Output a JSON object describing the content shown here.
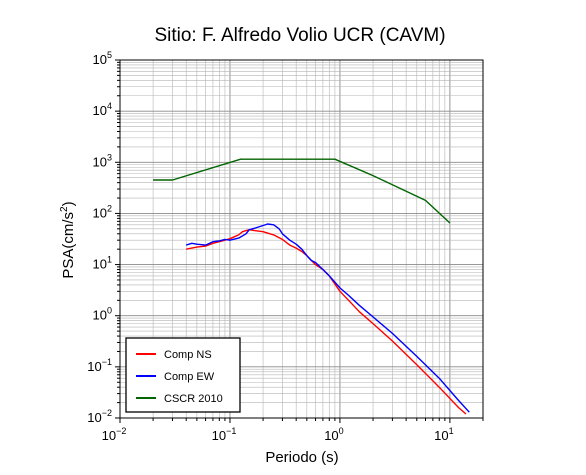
{
  "chart_data": {
    "type": "line",
    "title": "Sitio: F. Alfredo Volio UCR (CAVM)",
    "xlabel": "Periodo (s)",
    "ylabel_base": "PSA(cm/s",
    "ylabel_sup": "2",
    "ylabel_close": ")",
    "x_scale": "log",
    "y_scale": "log",
    "xlim": [
      0.01,
      20
    ],
    "ylim": [
      0.01,
      100000
    ],
    "grid": true,
    "legend_position": "bottom-left",
    "x_ticks": [
      {
        "value": 0.01,
        "base": "10",
        "exp": "−2"
      },
      {
        "value": 0.1,
        "base": "10",
        "exp": "−1"
      },
      {
        "value": 1,
        "base": "10",
        "exp": "0"
      },
      {
        "value": 10,
        "base": "10",
        "exp": "1"
      }
    ],
    "y_ticks": [
      {
        "value": 0.01,
        "base": "10",
        "exp": "−2"
      },
      {
        "value": 0.1,
        "base": "10",
        "exp": "−1"
      },
      {
        "value": 1,
        "base": "10",
        "exp": "0"
      },
      {
        "value": 10,
        "base": "10",
        "exp": "1"
      },
      {
        "value": 100,
        "base": "10",
        "exp": "2"
      },
      {
        "value": 1000,
        "base": "10",
        "exp": "3"
      },
      {
        "value": 10000,
        "base": "10",
        "exp": "4"
      },
      {
        "value": 100000,
        "base": "10",
        "exp": "5"
      }
    ],
    "series": [
      {
        "name": "Comp NS",
        "color": "#ff0000",
        "x": [
          0.04,
          0.045,
          0.05,
          0.06,
          0.07,
          0.08,
          0.09,
          0.1,
          0.11,
          0.12,
          0.13,
          0.15,
          0.17,
          0.2,
          0.25,
          0.3,
          0.35,
          0.4,
          0.45,
          0.5,
          0.55,
          0.6,
          0.7,
          0.8,
          1.0,
          1.2,
          1.5,
          2.0,
          3.0,
          5.0,
          8.0,
          12.0,
          14.0
        ],
        "y": [
          20,
          21,
          22,
          23,
          26,
          28,
          30,
          32,
          35,
          38,
          44,
          48,
          46,
          44,
          38,
          31,
          24,
          21,
          18,
          15,
          12,
          10,
          8,
          6,
          3,
          2,
          1.2,
          0.7,
          0.32,
          0.11,
          0.04,
          0.016,
          0.012
        ]
      },
      {
        "name": "Comp EW",
        "color": "#0000ff",
        "x": [
          0.04,
          0.045,
          0.05,
          0.06,
          0.07,
          0.08,
          0.09,
          0.1,
          0.12,
          0.14,
          0.15,
          0.17,
          0.2,
          0.22,
          0.25,
          0.28,
          0.3,
          0.35,
          0.4,
          0.45,
          0.5,
          0.55,
          0.6,
          0.7,
          0.8,
          1.0,
          1.2,
          1.5,
          2.0,
          3.0,
          5.0,
          8.0,
          12.0,
          15.0
        ],
        "y": [
          24,
          26,
          25,
          24,
          28,
          29,
          31,
          30,
          33,
          40,
          48,
          52,
          58,
          62,
          60,
          50,
          40,
          30,
          25,
          20,
          15,
          12,
          11,
          8,
          6,
          3.5,
          2.5,
          1.6,
          0.95,
          0.45,
          0.16,
          0.06,
          0.022,
          0.013
        ]
      },
      {
        "name": "CSCR 2010",
        "color": "#006400",
        "x": [
          0.02,
          0.03,
          0.125,
          0.3,
          0.9,
          2.0,
          6.0,
          10.0
        ],
        "y": [
          450,
          450,
          1150,
          1150,
          1150,
          550,
          180,
          65
        ]
      }
    ]
  }
}
